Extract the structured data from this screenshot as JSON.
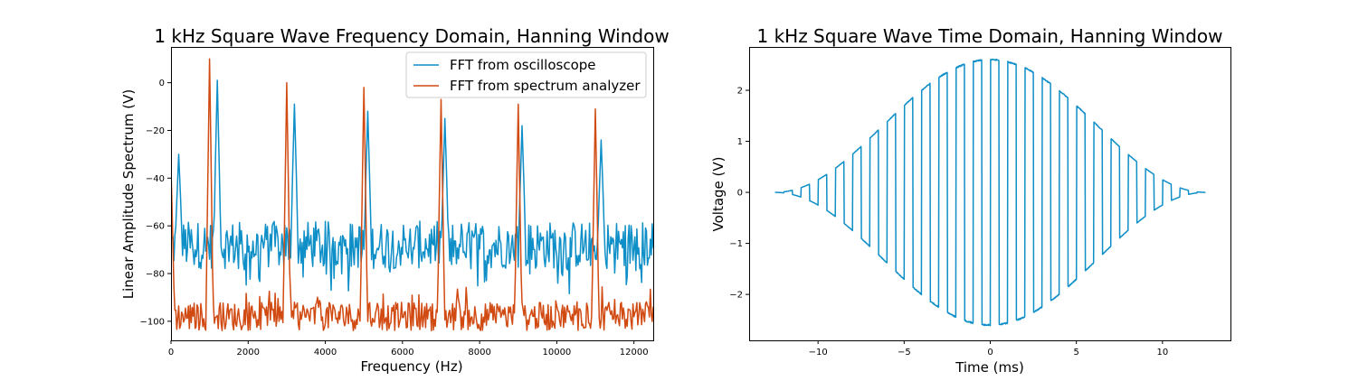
{
  "colors": {
    "scope": "#0e8fc7",
    "analyzer": "#d14a12"
  },
  "chart_data": [
    {
      "type": "line",
      "title": "1 kHz Square Wave Frequency Domain, Hanning Window",
      "xlabel": "Frequency (Hz)",
      "ylabel": "Linear Amplitude Spectrum (V)",
      "xlim": [
        0,
        12500
      ],
      "ylim": [
        -108,
        15
      ],
      "xticks": [
        0,
        2000,
        4000,
        6000,
        8000,
        10000,
        12000
      ],
      "xtick_labels": [
        "0",
        "2000",
        "4000",
        "6000",
        "8000",
        "10000",
        "12000"
      ],
      "yticks": [
        -100,
        -80,
        -60,
        -40,
        -20,
        0
      ],
      "ytick_labels": [
        "−100",
        "−80",
        "−60",
        "−40",
        "−20",
        "0"
      ],
      "legend_position": "top-right",
      "series": [
        {
          "name": "FFT from oscilloscope",
          "color": "#0e8fc7",
          "noise_floor": -68,
          "peaks": [
            {
              "x": 200,
              "y": -30
            },
            {
              "x": 1200,
              "y": 1
            },
            {
              "x": 3200,
              "y": -9
            },
            {
              "x": 5100,
              "y": -12
            },
            {
              "x": 7100,
              "y": -15
            },
            {
              "x": 9100,
              "y": -18
            },
            {
              "x": 11150,
              "y": -24
            }
          ]
        },
        {
          "name": "FFT from spectrum analyzer",
          "color": "#d14a12",
          "noise_floor": -98,
          "peaks": [
            {
              "x": 0,
              "y": -36
            },
            {
              "x": 1000,
              "y": 10
            },
            {
              "x": 3000,
              "y": 0
            },
            {
              "x": 5000,
              "y": -2
            },
            {
              "x": 7000,
              "y": -7
            },
            {
              "x": 9000,
              "y": -9
            },
            {
              "x": 11000,
              "y": -11
            }
          ]
        }
      ]
    },
    {
      "type": "line",
      "title": "1 kHz Square Wave Time Domain, Hanning Window",
      "xlabel": "Time (ms)",
      "ylabel": "Voltage (V)",
      "xlim": [
        -14,
        14
      ],
      "ylim": [
        -2.9,
        2.85
      ],
      "xticks": [
        -10,
        -5,
        0,
        5,
        10
      ],
      "xtick_labels": [
        "−10",
        "−5",
        "0",
        "5",
        "10"
      ],
      "yticks": [
        -2,
        -1,
        0,
        1,
        2
      ],
      "ytick_labels": [
        "−2",
        "−1",
        "0",
        "1",
        "2"
      ],
      "signal": {
        "frequency_khz": 1,
        "amplitude": 2.6,
        "t_start": -12.5,
        "t_end": 12.5,
        "window": "hanning"
      },
      "series": [
        {
          "name": "",
          "color": "#0e8fc7"
        }
      ]
    }
  ]
}
